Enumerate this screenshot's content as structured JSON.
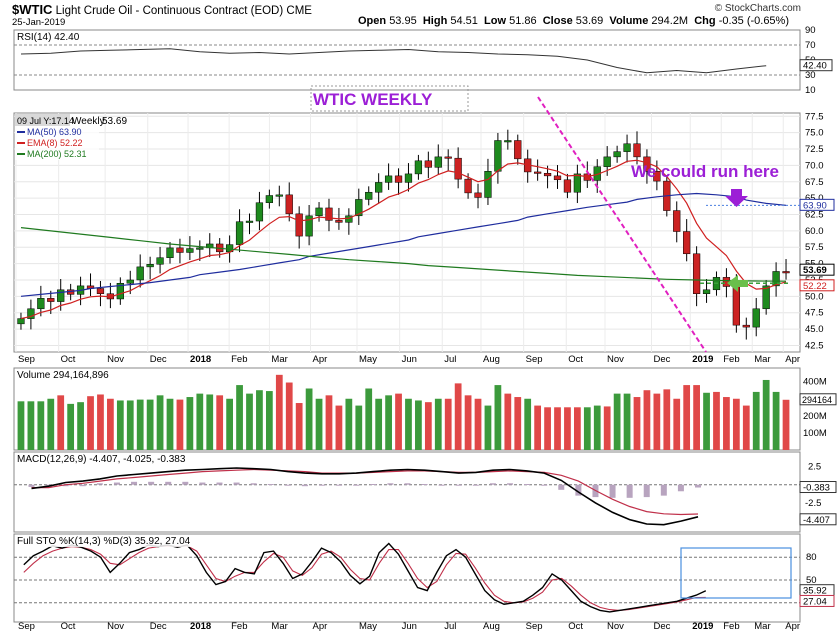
{
  "header": {
    "symbol": "$WTIC",
    "name": "Light Crude Oil - Continuous Contract (EOD)",
    "exchange": "CME",
    "date": "25-Jan-2019",
    "brand": "© StockCharts.com",
    "open_label": "Open",
    "open": "53.95",
    "high_label": "High",
    "high": "54.51",
    "low_label": "Low",
    "low": "51.86",
    "close_label": "Close",
    "close": "53.69",
    "volume_label": "Volume",
    "volume": "294.2M",
    "chg_label": "Chg",
    "chg": "-0.35 (-0.65%)"
  },
  "annotations": {
    "title": "WTIC WEEKLY",
    "note": "We could run here",
    "tooltip": "09 Jul Y:17.14",
    "down_arrow_color": "#9c1fd6",
    "left_arrow_color": "#6abf4b"
  },
  "chart_data": [
    {
      "type": "line",
      "panel": "RSI",
      "title": "RSI(14) 42.40",
      "ylim": [
        10,
        90
      ],
      "yticks": [
        10,
        30,
        50,
        70,
        90
      ],
      "reference_lines": [
        30,
        70
      ],
      "last_value": "42.40",
      "x": [
        0,
        3,
        6,
        9,
        12,
        15,
        18,
        21,
        24,
        27,
        30,
        33,
        36,
        39,
        42,
        45,
        48,
        51,
        54,
        57,
        60,
        63,
        66,
        69,
        72,
        75
      ],
      "values": [
        58,
        59,
        62,
        63,
        64,
        65,
        61,
        59,
        60,
        58,
        60,
        62,
        63,
        64,
        61,
        60,
        58,
        57,
        55,
        50,
        40,
        33,
        36,
        33,
        38,
        42.4
      ]
    },
    {
      "type": "candlestick",
      "panel": "Price",
      "title": "$WTIC (Weekly)",
      "legend_items": [
        {
          "label": "MA(50) 63.90",
          "color": "#1f2d9e"
        },
        {
          "label": "EMA(8) 52.22",
          "color": "#d02020"
        },
        {
          "label": "MA(200) 52.31",
          "color": "#1f7a1f"
        }
      ],
      "ylim": [
        41.5,
        78
      ],
      "yticks": [
        "42.5",
        "45.0",
        "47.5",
        "50.0",
        "52.5",
        "55.0",
        "57.5",
        "60.0",
        "62.5",
        "65.0",
        "67.5",
        "70.0",
        "72.5",
        "75.0",
        "77.5"
      ],
      "price_labels": [
        "63.90",
        "53.69",
        "52.22"
      ],
      "x_tick_labels": [
        "Sep",
        "Oct",
        "Nov",
        "Dec",
        "2018",
        "Feb",
        "Mar",
        "Apr",
        "May",
        "Jun",
        "Jul",
        "Aug",
        "Sep",
        "Oct",
        "Nov",
        "Dec",
        "2019",
        "Feb",
        "Mar",
        "Apr"
      ],
      "bullish_color": "#1e8a1e",
      "bearish_color": "#cc2222",
      "closes": [
        46.6,
        48.1,
        49.7,
        49.2,
        51.0,
        50.3,
        51.6,
        51.2,
        50.4,
        49.6,
        52.0,
        52.5,
        54.5,
        54.9,
        55.9,
        57.4,
        56.7,
        57.3,
        57.4,
        58.0,
        56.8,
        57.9,
        61.4,
        61.5,
        64.3,
        65.4,
        65.5,
        62.6,
        59.2,
        62.3,
        63.5,
        61.6,
        61.3,
        62.3,
        64.8,
        65.9,
        67.4,
        68.4,
        67.4,
        68.7,
        70.7,
        69.7,
        71.3,
        71.1,
        67.9,
        65.8,
        65.1,
        69.1,
        73.8,
        73.8,
        71.0,
        69.0,
        68.8,
        68.4,
        67.8,
        65.9,
        68.7,
        67.7,
        69.8,
        71.3,
        72.1,
        73.3,
        71.3,
        69.1,
        67.6,
        63.1,
        59.9,
        56.5,
        50.4,
        51.0,
        52.9,
        51.5,
        45.6,
        45.3,
        48.1,
        51.6,
        53.8,
        53.7
      ],
      "ma50": [
        50.0,
        50.3,
        50.6,
        50.9,
        51.2,
        51.5,
        51.8,
        52.1,
        52.5,
        52.9,
        53.3,
        53.7,
        54.1,
        54.6,
        55.1,
        55.6,
        56.1,
        56.6,
        57.1,
        57.6,
        58.1,
        58.6,
        59.1,
        59.6,
        60.1,
        60.6,
        61.1,
        61.6,
        62.1,
        62.6,
        63.1,
        63.6,
        64.0,
        64.4,
        64.8,
        65.2,
        65.5,
        65.7,
        65.5,
        65.2,
        64.7,
        64.2,
        63.9
      ],
      "ma200": [
        60.5,
        60.0,
        59.5,
        59.0,
        58.5,
        58.0,
        57.6,
        57.2,
        56.8,
        56.4,
        56.0,
        55.6,
        55.3,
        55.0,
        54.7,
        54.4,
        54.1,
        53.8,
        53.5,
        53.2,
        53.0,
        52.8,
        52.6,
        52.5,
        52.4,
        52.35,
        52.31
      ]
    },
    {
      "type": "bar",
      "panel": "Volume",
      "title": "Volume 294,164,896",
      "ylim": [
        0,
        480
      ],
      "ytick_labels": [
        "400M",
        "200M",
        "100M"
      ],
      "last_value": "294164",
      "bars": [
        {
          "value": 285,
          "dir": "up"
        },
        {
          "value": 285,
          "dir": "up"
        },
        {
          "value": 285,
          "dir": "up"
        },
        {
          "value": 300,
          "dir": "up"
        },
        {
          "value": 320,
          "dir": "down"
        },
        {
          "value": 270,
          "dir": "up"
        },
        {
          "value": 280,
          "dir": "up"
        },
        {
          "value": 315,
          "dir": "down"
        },
        {
          "value": 325,
          "dir": "down"
        },
        {
          "value": 300,
          "dir": "down"
        },
        {
          "value": 290,
          "dir": "up"
        },
        {
          "value": 290,
          "dir": "up"
        },
        {
          "value": 295,
          "dir": "up"
        },
        {
          "value": 295,
          "dir": "up"
        },
        {
          "value": 320,
          "dir": "up"
        },
        {
          "value": 300,
          "dir": "up"
        },
        {
          "value": 295,
          "dir": "down"
        },
        {
          "value": 310,
          "dir": "up"
        },
        {
          "value": 330,
          "dir": "up"
        },
        {
          "value": 325,
          "dir": "up"
        },
        {
          "value": 320,
          "dir": "down"
        },
        {
          "value": 300,
          "dir": "up"
        },
        {
          "value": 380,
          "dir": "up"
        },
        {
          "value": 330,
          "dir": "up"
        },
        {
          "value": 350,
          "dir": "up"
        },
        {
          "value": 345,
          "dir": "up"
        },
        {
          "value": 440,
          "dir": "down"
        },
        {
          "value": 395,
          "dir": "down"
        },
        {
          "value": 275,
          "dir": "down"
        },
        {
          "value": 360,
          "dir": "up"
        },
        {
          "value": 300,
          "dir": "up"
        },
        {
          "value": 320,
          "dir": "down"
        },
        {
          "value": 260,
          "dir": "down"
        },
        {
          "value": 300,
          "dir": "up"
        },
        {
          "value": 260,
          "dir": "up"
        },
        {
          "value": 360,
          "dir": "up"
        },
        {
          "value": 300,
          "dir": "up"
        },
        {
          "value": 320,
          "dir": "up"
        },
        {
          "value": 330,
          "dir": "down"
        },
        {
          "value": 300,
          "dir": "up"
        },
        {
          "value": 290,
          "dir": "up"
        },
        {
          "value": 280,
          "dir": "down"
        },
        {
          "value": 300,
          "dir": "up"
        },
        {
          "value": 300,
          "dir": "down"
        },
        {
          "value": 390,
          "dir": "down"
        },
        {
          "value": 320,
          "dir": "down"
        },
        {
          "value": 300,
          "dir": "down"
        },
        {
          "value": 260,
          "dir": "up"
        },
        {
          "value": 380,
          "dir": "up"
        },
        {
          "value": 330,
          "dir": "down"
        },
        {
          "value": 310,
          "dir": "down"
        },
        {
          "value": 300,
          "dir": "up"
        },
        {
          "value": 260,
          "dir": "down"
        },
        {
          "value": 250,
          "dir": "down"
        },
        {
          "value": 250,
          "dir": "down"
        },
        {
          "value": 250,
          "dir": "down"
        },
        {
          "value": 250,
          "dir": "down"
        },
        {
          "value": 250,
          "dir": "up"
        },
        {
          "value": 260,
          "dir": "up"
        },
        {
          "value": 255,
          "dir": "down"
        },
        {
          "value": 330,
          "dir": "up"
        },
        {
          "value": 330,
          "dir": "up"
        },
        {
          "value": 310,
          "dir": "down"
        },
        {
          "value": 350,
          "dir": "down"
        },
        {
          "value": 330,
          "dir": "down"
        },
        {
          "value": 355,
          "dir": "down"
        },
        {
          "value": 300,
          "dir": "down"
        },
        {
          "value": 380,
          "dir": "down"
        },
        {
          "value": 380,
          "dir": "down"
        },
        {
          "value": 335,
          "dir": "up"
        },
        {
          "value": 340,
          "dir": "down"
        },
        {
          "value": 310,
          "dir": "down"
        },
        {
          "value": 300,
          "dir": "down"
        },
        {
          "value": 260,
          "dir": "down"
        },
        {
          "value": 340,
          "dir": "up"
        },
        {
          "value": 410,
          "dir": "up"
        },
        {
          "value": 340,
          "dir": "up"
        },
        {
          "value": 294,
          "dir": "down"
        }
      ]
    },
    {
      "type": "line",
      "panel": "MACD",
      "title": "MACD(12,26,9) -4.407, -4.025, -0.383",
      "ylim": [
        -6.5,
        4.5
      ],
      "ytick_labels": [
        "2.5",
        "-2.5"
      ],
      "price_labels": [
        "-0.383",
        "-4.407"
      ],
      "macd": [
        -0.5,
        -0.2,
        0.3,
        0.5,
        0.8,
        1.2,
        1.4,
        1.6,
        1.8,
        2.0,
        2.1,
        2.2,
        2.3,
        2.2,
        2.1,
        1.8,
        1.6,
        1.5,
        1.5,
        1.6,
        1.8,
        2.0,
        2.1,
        2.0,
        1.8,
        1.6,
        1.7,
        2.0,
        2.1,
        1.9,
        1.6,
        0.6,
        -1.0,
        -2.5,
        -3.8,
        -4.8,
        -5.4,
        -5.5,
        -5.0,
        -4.407
      ],
      "signal": [
        -0.4,
        -0.4,
        0.0,
        0.2,
        0.5,
        0.8,
        1.0,
        1.2,
        1.4,
        1.6,
        1.8,
        1.9,
        2.0,
        2.1,
        2.0,
        1.9,
        1.8,
        1.6,
        1.6,
        1.6,
        1.7,
        1.8,
        1.9,
        1.9,
        1.8,
        1.7,
        1.7,
        1.8,
        1.9,
        1.8,
        1.7,
        1.3,
        0.5,
        -0.8,
        -2.0,
        -3.0,
        -3.7,
        -4.0,
        -4.1,
        -4.025
      ],
      "histogram": [
        -0.3,
        -0.2,
        -0.2,
        -0.2,
        0.2,
        0.3,
        0.4,
        0.4,
        0.4,
        0.4,
        0.3,
        0.3,
        0.3,
        0.2,
        0.1,
        -0.1,
        -0.2,
        -0.1,
        -0.1,
        0.0,
        0.1,
        0.2,
        0.2,
        0.1,
        0.0,
        -0.1,
        0.0,
        0.2,
        0.2,
        0.1,
        -0.1,
        -0.7,
        -1.5,
        -1.7,
        -1.8,
        -1.8,
        -1.7,
        -1.5,
        -0.9,
        -0.383
      ]
    },
    {
      "type": "line",
      "panel": "Stochastic",
      "title": "Full STO %K(14,3) %D(3) 35.92, 27.04",
      "ylim": [
        0,
        100
      ],
      "yticks": [
        "20",
        "50",
        "80"
      ],
      "price_labels": [
        "35.92",
        "27.04"
      ],
      "k": [
        70,
        82,
        88,
        95,
        92,
        96,
        93,
        88,
        80,
        60,
        72,
        86,
        90,
        96,
        94,
        96,
        93,
        96,
        82,
        60,
        44,
        48,
        65,
        60,
        58,
        86,
        88,
        72,
        52,
        58,
        74,
        92,
        86,
        74,
        56,
        45,
        55,
        86,
        98,
        84,
        62,
        40,
        36,
        60,
        82,
        90,
        80,
        58,
        36,
        24,
        18,
        20,
        22,
        30,
        40,
        58,
        50,
        36,
        22,
        15,
        10,
        8,
        10,
        12,
        14,
        16,
        18,
        20,
        22,
        26,
        30,
        35.92
      ],
      "d": [
        60,
        72,
        82,
        88,
        92,
        94,
        93,
        90,
        84,
        72,
        70,
        78,
        86,
        92,
        94,
        95,
        94,
        95,
        88,
        70,
        52,
        48,
        55,
        60,
        60,
        74,
        85,
        80,
        62,
        56,
        66,
        84,
        88,
        80,
        64,
        52,
        50,
        72,
        90,
        90,
        72,
        52,
        40,
        48,
        70,
        85,
        84,
        66,
        46,
        30,
        22,
        20,
        21,
        26,
        34,
        50,
        52,
        42,
        30,
        20,
        14,
        11,
        10,
        11,
        13,
        15,
        17,
        19,
        21,
        24,
        27,
        27.04
      ]
    }
  ]
}
